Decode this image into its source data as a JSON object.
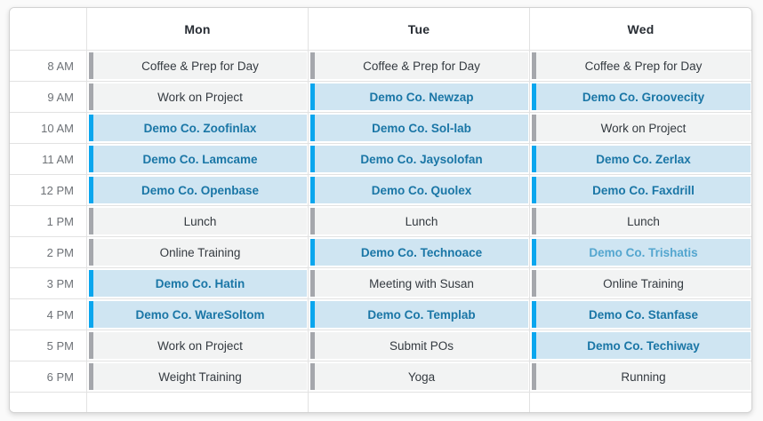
{
  "board": {
    "days": [
      {
        "label": "Mon"
      },
      {
        "label": "Tue"
      },
      {
        "label": "Wed"
      }
    ],
    "rows": [
      {
        "time": "8 AM",
        "events": [
          {
            "label": "Coffee & Prep for Day",
            "type": "gray"
          },
          {
            "label": "Coffee & Prep for Day",
            "type": "gray"
          },
          {
            "label": "Coffee & Prep for Day",
            "type": "gray"
          }
        ]
      },
      {
        "time": "9 AM",
        "events": [
          {
            "label": "Work on Project",
            "type": "gray"
          },
          {
            "label": "Demo Co. Newzap",
            "type": "demo"
          },
          {
            "label": "Demo Co. Groovecity",
            "type": "demo"
          }
        ]
      },
      {
        "time": "10 AM",
        "events": [
          {
            "label": "Demo Co. Zoofinlax",
            "type": "demo"
          },
          {
            "label": "Demo Co. Sol-lab",
            "type": "demo"
          },
          {
            "label": "Work on Project",
            "type": "gray"
          }
        ]
      },
      {
        "time": "11 AM",
        "events": [
          {
            "label": "Demo Co. Lamcame",
            "type": "demo"
          },
          {
            "label": "Demo Co. Jaysolofan",
            "type": "demo"
          },
          {
            "label": "Demo Co. Zerlax",
            "type": "demo"
          }
        ]
      },
      {
        "time": "12 PM",
        "events": [
          {
            "label": "Demo Co. Openbase",
            "type": "demo"
          },
          {
            "label": "Demo Co. Quolex",
            "type": "demo"
          },
          {
            "label": "Demo Co. Faxdrill",
            "type": "demo"
          }
        ]
      },
      {
        "time": "1 PM",
        "events": [
          {
            "label": "Lunch",
            "type": "gray"
          },
          {
            "label": "Lunch",
            "type": "gray"
          },
          {
            "label": "Lunch",
            "type": "gray"
          }
        ]
      },
      {
        "time": "2 PM",
        "events": [
          {
            "label": "Online Training",
            "type": "gray"
          },
          {
            "label": "Demo Co. Technoace",
            "type": "demo"
          },
          {
            "label": "Demo Co. Trishatis",
            "type": "demo-light"
          }
        ]
      },
      {
        "time": "3 PM",
        "events": [
          {
            "label": "Demo Co. Hatin",
            "type": "demo"
          },
          {
            "label": "Meeting with Susan",
            "type": "gray"
          },
          {
            "label": "Online Training",
            "type": "gray"
          }
        ]
      },
      {
        "time": "4 PM",
        "events": [
          {
            "label": "Demo Co. WareSoltom",
            "type": "demo"
          },
          {
            "label": "Demo Co. Templab",
            "type": "demo"
          },
          {
            "label": "Demo Co. Stanfase",
            "type": "demo"
          }
        ]
      },
      {
        "time": "5 PM",
        "events": [
          {
            "label": "Work on Project",
            "type": "gray"
          },
          {
            "label": "Submit POs",
            "type": "gray"
          },
          {
            "label": "Demo Co. Techiway",
            "type": "demo"
          }
        ]
      },
      {
        "time": "6 PM",
        "events": [
          {
            "label": "Weight Training",
            "type": "gray"
          },
          {
            "label": "Yoga",
            "type": "gray"
          },
          {
            "label": "Running",
            "type": "gray"
          }
        ]
      }
    ],
    "colors": {
      "demo_bg": "#cfe5f2",
      "demo_bar": "#0aa6ee",
      "demo_text": "#1a76a6",
      "demo_light_text": "#54a6cf",
      "gray_bg": "#f2f3f3",
      "gray_bar": "#a5a7ac",
      "gray_text": "#343a40"
    }
  }
}
